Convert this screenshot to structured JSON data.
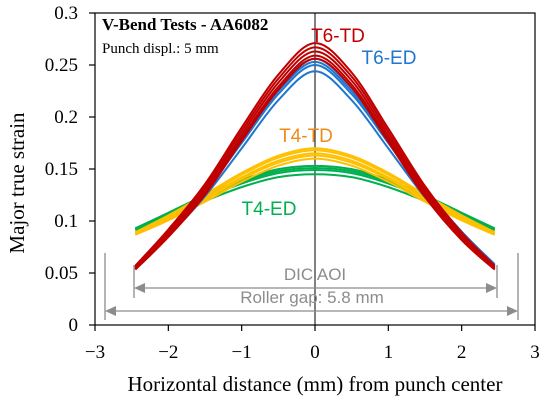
{
  "chart_data": {
    "type": "line",
    "title": "V-Bend Tests - AA6082",
    "subtitle": "Punch displ.: 5 mm",
    "xlabel": "Horizontal distance (mm) from punch center",
    "ylabel": "Major true strain",
    "xlim": [
      -3,
      3
    ],
    "ylim": [
      0,
      0.3
    ],
    "xticks": [
      "−3",
      "−2",
      "−1",
      "0",
      "1",
      "2",
      "3"
    ],
    "yticks": [
      "0",
      "0.05",
      "0.1",
      "0.15",
      "0.2",
      "0.25",
      "0.3"
    ],
    "grid": false,
    "series": [
      {
        "name": "T6-TD",
        "color": "#c00000",
        "x": [
          -2.45,
          -2.0,
          -1.5,
          -1.0,
          -0.5,
          0.0,
          0.5,
          1.0,
          1.5,
          2.0,
          2.45
        ],
        "values": [
          0.055,
          0.088,
          0.13,
          0.183,
          0.233,
          0.263,
          0.235,
          0.182,
          0.128,
          0.085,
          0.055
        ]
      },
      {
        "name": "T6-ED",
        "color": "#1f77d0",
        "x": [
          -2.45,
          -2.0,
          -1.5,
          -1.0,
          -0.5,
          0.0,
          0.5,
          1.0,
          1.5,
          2.0,
          2.45
        ],
        "values": [
          0.055,
          0.088,
          0.128,
          0.175,
          0.222,
          0.25,
          0.222,
          0.175,
          0.127,
          0.087,
          0.057
        ]
      },
      {
        "name": "T4-TD",
        "color": "#ffc000",
        "x": [
          -2.45,
          -2.0,
          -1.5,
          -1.0,
          -0.5,
          0.0,
          0.5,
          1.0,
          1.5,
          2.0,
          2.45
        ],
        "values": [
          0.088,
          0.103,
          0.122,
          0.142,
          0.158,
          0.165,
          0.158,
          0.142,
          0.122,
          0.103,
          0.088
        ]
      },
      {
        "name": "T4-ED",
        "color": "#00b050",
        "x": [
          -2.45,
          -2.0,
          -1.5,
          -1.0,
          -0.5,
          0.0,
          0.5,
          1.0,
          1.5,
          2.0,
          2.45
        ],
        "values": [
          0.092,
          0.106,
          0.122,
          0.136,
          0.146,
          0.149,
          0.146,
          0.136,
          0.122,
          0.106,
          0.092
        ]
      }
    ],
    "series_labels": [
      "T6-TD",
      "T6-ED",
      "T4-TD",
      "T4-ED"
    ],
    "annotations": [
      "DIC AOI",
      "Roller gap: 5.8 mm"
    ]
  }
}
